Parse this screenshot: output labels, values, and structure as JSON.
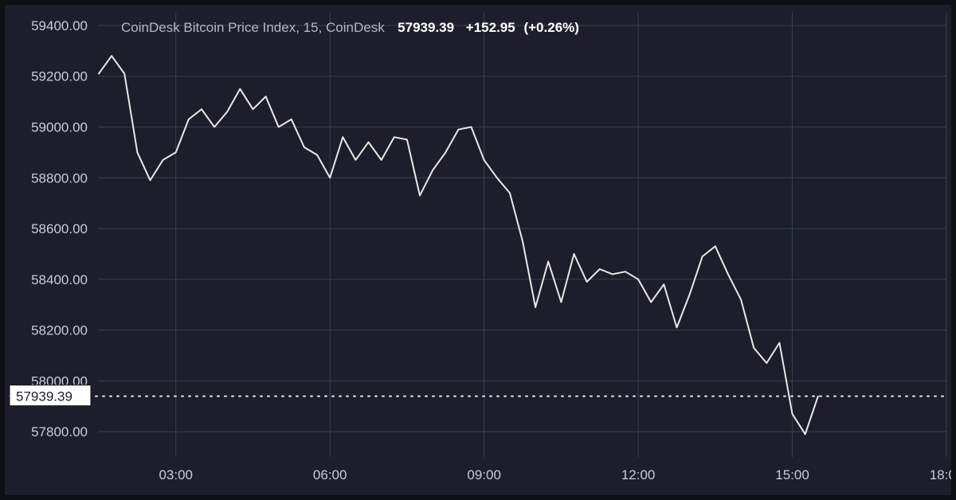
{
  "chart": {
    "type": "line",
    "title_prefix": "CoinDesk Bitcoin Price Index, 15, CoinDesk",
    "last_price": "57939.39",
    "change_abs": "+152.95",
    "change_pct": "(+0.26%)",
    "background_color": "#1c1f2b",
    "outer_border_color": "#0e1016",
    "grid_color": "#3a3f4f",
    "line_color": "#e8e8e8",
    "line_width": 2,
    "label_color": "#c8ccd8",
    "label_fontsize": 17,
    "header_emph_color": "#ffffff",
    "price_tag_bg": "#ffffff",
    "price_tag_fg": "#1c1f2b",
    "y_axis": {
      "ticks": [
        57800,
        58000,
        58200,
        58400,
        58600,
        58800,
        59000,
        59200,
        59400
      ],
      "labels": [
        "57800.00",
        "58000.00",
        "58200.00",
        "58400.00",
        "58600.00",
        "58800.00",
        "59000.00",
        "59200.00",
        "59400.00"
      ],
      "min": 57700,
      "max": 59450
    },
    "x_axis": {
      "ticks": [
        3,
        6,
        9,
        12,
        15,
        18
      ],
      "labels": [
        "03:00",
        "06:00",
        "09:00",
        "12:00",
        "15:00",
        "18:00"
      ],
      "min": 1.5,
      "max": 18
    },
    "current_line_value": 57939.39,
    "series": {
      "x": [
        1.5,
        1.75,
        2.0,
        2.25,
        2.5,
        2.75,
        3.0,
        3.25,
        3.5,
        3.75,
        4.0,
        4.25,
        4.5,
        4.75,
        5.0,
        5.25,
        5.5,
        5.75,
        6.0,
        6.25,
        6.5,
        6.75,
        7.0,
        7.25,
        7.5,
        7.75,
        8.0,
        8.25,
        8.5,
        8.75,
        9.0,
        9.25,
        9.5,
        9.75,
        10.0,
        10.25,
        10.5,
        10.75,
        11.0,
        11.25,
        11.5,
        11.75,
        12.0,
        12.25,
        12.5,
        12.75,
        13.0,
        13.25,
        13.5,
        13.75,
        14.0,
        14.25,
        14.5,
        14.75,
        15.0,
        15.25,
        15.5
      ],
      "y": [
        59210,
        59280,
        59210,
        58900,
        58790,
        58870,
        58900,
        59030,
        59070,
        59000,
        59060,
        59150,
        59070,
        59120,
        59000,
        59030,
        58920,
        58890,
        58800,
        58960,
        58870,
        58940,
        58870,
        58960,
        58950,
        58730,
        58830,
        58900,
        58990,
        59000,
        58870,
        58800,
        58740,
        58550,
        58290,
        58470,
        58310,
        58500,
        58390,
        58440,
        58420,
        58430,
        58400,
        58310,
        58380,
        58210,
        58340,
        58490,
        58530,
        58420,
        58320,
        58130,
        58070,
        58150,
        57870,
        57790,
        57939
      ]
    }
  }
}
